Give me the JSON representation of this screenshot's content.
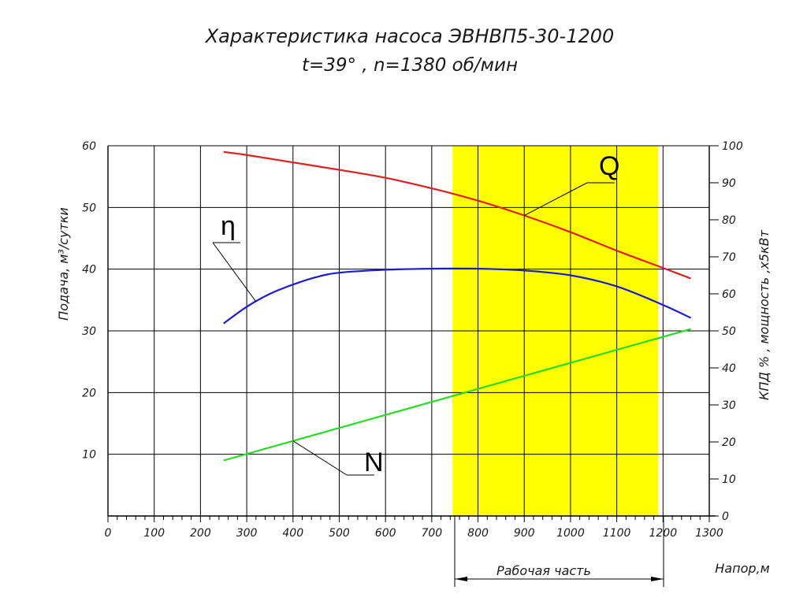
{
  "chart_data": {
    "type": "line",
    "title": "Характеристика насоса ЭВНВП5-30-1200",
    "subtitle": "t=39° , n=1380 об/мин",
    "xlabel": "Напор,м",
    "ylabel_left": "Подача, м³/сутки",
    "ylabel_right": "КПД % , мощность ,х5кВт",
    "xlim": [
      0,
      1300
    ],
    "ylim_left": [
      0,
      60
    ],
    "ylim_right": [
      0,
      100
    ],
    "x_ticks": [
      0,
      100,
      200,
      300,
      400,
      500,
      600,
      700,
      800,
      900,
      1000,
      1100,
      1200,
      1300
    ],
    "y_left_ticks": [
      10,
      20,
      30,
      40,
      50,
      60
    ],
    "y_right_ticks": [
      0,
      10,
      20,
      30,
      40,
      50,
      60,
      70,
      80,
      90,
      100
    ],
    "grid": true,
    "working_range": {
      "label": "Рабочая часть",
      "x": [
        745,
        1190
      ],
      "color": "#ffff00"
    },
    "series": [
      {
        "name": "Q",
        "axis": "left",
        "color": "#e02020",
        "x": [
          250,
          300,
          400,
          500,
          600,
          700,
          800,
          900,
          1000,
          1100,
          1200,
          1260
        ],
        "values": [
          59,
          58.5,
          57.3,
          56.1,
          54.8,
          53.1,
          51.1,
          48.7,
          46.0,
          43.0,
          40.2,
          38.5
        ]
      },
      {
        "name": "η",
        "axis": "right",
        "color": "#1a1ad8",
        "x": [
          250,
          300,
          350,
          400,
          450,
          500,
          600,
          700,
          800,
          900,
          1000,
          1100,
          1200,
          1260
        ],
        "values": [
          52,
          56.5,
          60,
          62.5,
          64.5,
          65.7,
          66.5,
          66.8,
          66.8,
          66.3,
          65,
          62,
          57,
          53.5
        ]
      },
      {
        "name": "N",
        "axis": "right",
        "color": "#22dd22",
        "x": [
          250,
          1260
        ],
        "values": [
          15,
          50.5
        ]
      }
    ]
  }
}
